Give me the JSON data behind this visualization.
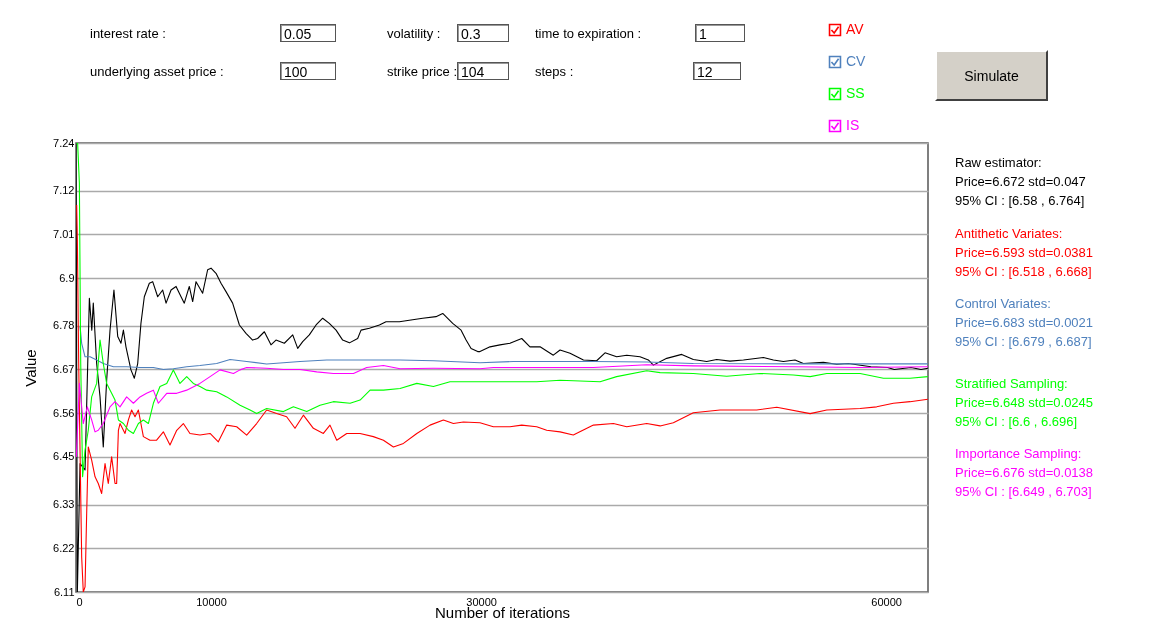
{
  "chart_data": {
    "type": "line",
    "xlabel": "Number of iterations",
    "ylabel": "Value",
    "xlim": [
      0,
      63100
    ],
    "xticks": [
      0,
      10000,
      30000,
      60000
    ],
    "ylim": [
      6.11,
      7.24
    ],
    "yticks": [
      6.11,
      6.22,
      6.33,
      6.45,
      6.56,
      6.67,
      6.78,
      6.9,
      7.01,
      7.12,
      7.24
    ],
    "grid": "y",
    "legend": "top right",
    "series": [
      {
        "color": "#000000",
        "x": [
          0,
          100,
          300,
          670,
          990,
          1170,
          1280,
          1530,
          1780,
          2020,
          2270,
          2520,
          2810,
          3090,
          3330,
          3510,
          3700,
          4070,
          4320,
          4570,
          4810,
          5060,
          5430,
          5680,
          6050,
          6420,
          6670,
          7040,
          7410,
          7780,
          8020,
          8390,
          8640,
          8890,
          9380,
          9750,
          10000,
          10370,
          10740,
          11110,
          11600,
          12100,
          12590,
          13080,
          13450,
          13950,
          14440,
          14810,
          15430,
          16050,
          16420,
          16790,
          17280,
          17780,
          18270,
          18760,
          19260,
          19750,
          20250,
          20860,
          21110,
          21730,
          22470,
          22960,
          23950,
          24930,
          25680,
          26660,
          27160,
          27900,
          28520,
          28890,
          29260,
          29750,
          29920,
          30660,
          31400,
          32140,
          33010,
          33620,
          34370,
          35350,
          35850,
          36590,
          37580,
          38560,
          39180,
          40040,
          40790,
          41770,
          42390,
          42760,
          43750,
          44860,
          45720,
          46710,
          47450,
          48440,
          49430,
          50910,
          51650,
          52390,
          53250,
          53870,
          55350,
          56340,
          57200,
          58880,
          60110,
          60600,
          61840,
          62580,
          63090
        ],
        "values": [
          7.24,
          6.11,
          6.433,
          6.417,
          6.849,
          6.769,
          6.837,
          6.685,
          6.601,
          6.475,
          6.643,
          6.769,
          6.87,
          6.753,
          6.736,
          6.769,
          6.727,
          6.669,
          6.648,
          6.685,
          6.786,
          6.853,
          6.887,
          6.891,
          6.853,
          6.87,
          6.837,
          6.87,
          6.879,
          6.853,
          6.837,
          6.879,
          6.841,
          6.891,
          6.862,
          6.921,
          6.925,
          6.912,
          6.887,
          6.866,
          6.837,
          6.782,
          6.761,
          6.744,
          6.748,
          6.765,
          6.732,
          6.744,
          6.736,
          6.757,
          6.723,
          6.74,
          6.757,
          6.782,
          6.799,
          6.786,
          6.769,
          6.744,
          6.737,
          6.748,
          6.769,
          6.774,
          6.782,
          6.79,
          6.79,
          6.795,
          6.799,
          6.803,
          6.811,
          6.786,
          6.769,
          6.744,
          6.723,
          6.715,
          6.715,
          6.727,
          6.732,
          6.736,
          6.748,
          6.727,
          6.727,
          6.706,
          6.719,
          6.711,
          6.694,
          6.692,
          6.712,
          6.702,
          6.706,
          6.702,
          6.694,
          6.681,
          6.698,
          6.708,
          6.695,
          6.69,
          6.695,
          6.691,
          6.694,
          6.7,
          6.694,
          6.69,
          6.694,
          6.685,
          6.688,
          6.683,
          6.685,
          6.677,
          6.675,
          6.67,
          6.675,
          6.67,
          6.673
        ]
      },
      {
        "name": "AV",
        "color": "#ff0000",
        "x": [
          50,
          100,
          200,
          420,
          540,
          670,
          790,
          910,
          1160,
          1410,
          1650,
          1900,
          2150,
          2390,
          2640,
          2890,
          3010,
          3140,
          3260,
          3630,
          3880,
          4120,
          4370,
          4620,
          4990,
          5480,
          5970,
          6470,
          6960,
          7460,
          7950,
          8440,
          9180,
          9930,
          10540,
          11160,
          11900,
          12640,
          13380,
          14120,
          14860,
          15600,
          16220,
          16840,
          17580,
          18320,
          18810,
          19310,
          20050,
          21040,
          22020,
          22770,
          23510,
          24250,
          25240,
          26220,
          27210,
          27950,
          28690,
          29920,
          30910,
          32140,
          33010,
          34120,
          34860,
          35850,
          36830,
          38320,
          39800,
          40790,
          42270,
          43260,
          44240,
          45720,
          47700,
          50410,
          51900,
          54370,
          55600,
          58070,
          59300,
          60540,
          61770,
          63090
        ],
        "values": [
          7.084,
          6.996,
          6.685,
          6.198,
          6.11,
          6.123,
          6.307,
          6.475,
          6.442,
          6.4,
          6.383,
          6.358,
          6.433,
          6.383,
          6.45,
          6.383,
          6.383,
          6.517,
          6.534,
          6.509,
          6.543,
          6.568,
          6.551,
          6.568,
          6.501,
          6.492,
          6.492,
          6.513,
          6.48,
          6.517,
          6.534,
          6.509,
          6.505,
          6.509,
          6.488,
          6.53,
          6.526,
          6.505,
          6.534,
          6.568,
          6.559,
          6.551,
          6.522,
          6.555,
          6.522,
          6.509,
          6.53,
          6.492,
          6.509,
          6.509,
          6.501,
          6.492,
          6.475,
          6.484,
          6.509,
          6.53,
          6.543,
          6.534,
          6.538,
          6.536,
          6.526,
          6.526,
          6.53,
          6.526,
          6.517,
          6.513,
          6.505,
          6.53,
          6.534,
          6.526,
          6.534,
          6.528,
          6.536,
          6.561,
          6.568,
          6.568,
          6.575,
          6.559,
          6.568,
          6.572,
          6.576,
          6.585,
          6.589,
          6.595
        ]
      },
      {
        "name": "CV",
        "color": "#4f81bd",
        "x": [
          300,
          420,
          670,
          1040,
          1530,
          2020,
          2770,
          3750,
          4740,
          5730,
          6470,
          7210,
          8200,
          9180,
          10420,
          11410,
          12640,
          14120,
          15360,
          16590,
          18570,
          24000,
          26470,
          29920,
          32390,
          38320,
          42270,
          45720,
          53130,
          63090
        ],
        "values": [
          6.778,
          6.736,
          6.702,
          6.702,
          6.694,
          6.685,
          6.677,
          6.677,
          6.675,
          6.675,
          6.67,
          6.672,
          6.677,
          6.68,
          6.685,
          6.695,
          6.69,
          6.684,
          6.687,
          6.69,
          6.694,
          6.694,
          6.692,
          6.687,
          6.69,
          6.69,
          6.689,
          6.685,
          6.684,
          6.684
        ]
      },
      {
        "name": "SS",
        "color": "#00ff00",
        "x": [
          0,
          120,
          250,
          350,
          490,
          670,
          910,
          1160,
          1530,
          1780,
          2020,
          2270,
          2640,
          2890,
          3140,
          3510,
          3880,
          4250,
          4620,
          4990,
          5360,
          5730,
          6220,
          6720,
          7210,
          7700,
          8200,
          8690,
          9180,
          9680,
          10420,
          11160,
          12150,
          12890,
          13380,
          14120,
          15360,
          16100,
          17090,
          18070,
          19060,
          20300,
          21040,
          21780,
          22770,
          24000,
          25240,
          26470,
          27700,
          29920,
          32140,
          34120,
          35850,
          38810,
          40040,
          42270,
          43260,
          45720,
          48190,
          50660,
          53130,
          54370,
          55600,
          58070,
          59800,
          61770,
          63090
        ],
        "values": [
          7.24,
          7.24,
          7.139,
          6.685,
          6.4,
          6.467,
          6.517,
          6.601,
          6.635,
          6.744,
          6.685,
          6.635,
          6.61,
          6.593,
          6.543,
          6.534,
          6.517,
          6.509,
          6.534,
          6.543,
          6.534,
          6.585,
          6.627,
          6.635,
          6.669,
          6.635,
          6.652,
          6.635,
          6.627,
          6.618,
          6.614,
          6.601,
          6.58,
          6.568,
          6.559,
          6.572,
          6.564,
          6.576,
          6.564,
          6.58,
          6.589,
          6.585,
          6.593,
          6.618,
          6.618,
          6.622,
          6.635,
          6.627,
          6.639,
          6.639,
          6.639,
          6.639,
          6.643,
          6.639,
          6.652,
          6.667,
          6.662,
          6.66,
          6.653,
          6.66,
          6.656,
          6.652,
          6.66,
          6.66,
          6.648,
          6.648,
          6.652
        ]
      },
      {
        "name": "IS",
        "color": "#ff00ff",
        "x": [
          25,
          250,
          540,
          840,
          1160,
          1410,
          1650,
          2020,
          2520,
          2890,
          3260,
          3750,
          4250,
          4740,
          5230,
          5730,
          6100,
          6720,
          7460,
          8200,
          9180,
          9930,
          10670,
          11660,
          12150,
          12640,
          14120,
          15360,
          16590,
          17830,
          19060,
          20550,
          21530,
          22770,
          24000,
          26470,
          29920,
          30910,
          33380,
          38320,
          42270,
          45720,
          53130,
          58070,
          63090
        ],
        "values": [
          6.45,
          6.635,
          6.534,
          6.576,
          6.543,
          6.513,
          6.517,
          6.534,
          6.576,
          6.589,
          6.576,
          6.601,
          6.585,
          6.601,
          6.61,
          6.618,
          6.585,
          6.61,
          6.61,
          6.618,
          6.635,
          6.652,
          6.669,
          6.66,
          6.669,
          6.675,
          6.673,
          6.67,
          6.67,
          6.664,
          6.66,
          6.66,
          6.675,
          6.68,
          6.672,
          6.673,
          6.672,
          6.675,
          6.675,
          6.675,
          6.682,
          6.679,
          6.677,
          6.675,
          6.677
        ]
      }
    ],
    "annotations": [
      "interest rate :",
      "0.05",
      "volatility :",
      "0.3",
      "time to expiration :",
      "1",
      "underlying asset price :",
      "100",
      "strike price :",
      "104",
      "steps :",
      "12",
      "Simulate",
      "Raw estimator:",
      "Price=6.672  std=0.047",
      "95% CI : [6.58 , 6.764]",
      "Antithetic Variates:",
      "Price=6.593  std=0.0381",
      "95% CI : [6.518 , 6.668]",
      "Control Variates:",
      "Price=6.683  std=0.0021",
      "95% CI : [6.679 , 6.687]",
      "Stratified Sampling:",
      "Price=6.648  std=0.0245",
      "95% CI : [6.6 , 6.696]",
      "Importance Sampling:",
      "Price=6.676  std=0.0138",
      "95% CI : [6.649 , 6.703]"
    ]
  }
}
